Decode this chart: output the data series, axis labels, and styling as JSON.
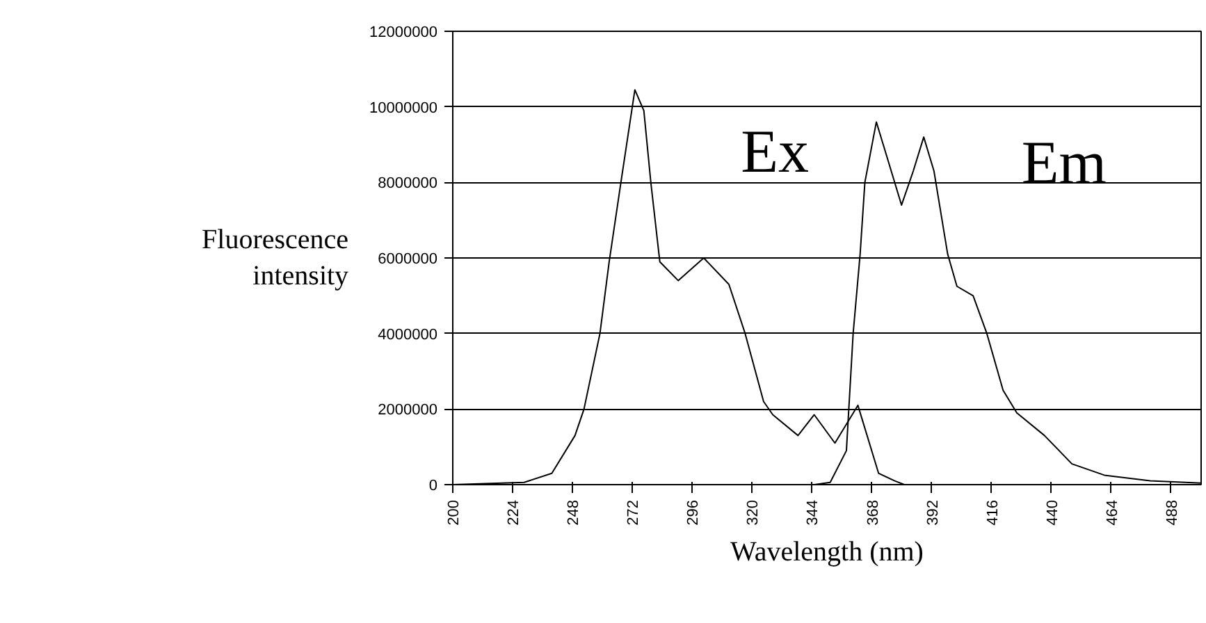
{
  "chart_data": {
    "type": "line",
    "xlabel": "Wavelength (nm)",
    "ylabel": "Fluorescence intensity",
    "xlim": [
      200,
      500
    ],
    "xticks": [
      200,
      224,
      248,
      272,
      296,
      320,
      344,
      368,
      392,
      416,
      440,
      464,
      488
    ],
    "ylim": [
      0,
      12000000
    ],
    "yticks": [
      0,
      2000000,
      4000000,
      6000000,
      8000000,
      10000000,
      12000000
    ],
    "grid": "y",
    "marker": "none",
    "line_style": "solid",
    "annotations": [
      "Ex",
      "Em"
    ],
    "series": [
      {
        "color": "#000000",
        "x": [
          200,
          228.6,
          239.7,
          249,
          252.6,
          259,
          262.7,
          267.4,
          273,
          276.6,
          279.4,
          283,
          290.4,
          300.6,
          310.7,
          317.2,
          324.6,
          328.3,
          338.4,
          344.9,
          353.2,
          362.4,
          370.7,
          377.2,
          381,
          500
        ],
        "values": [
          0,
          60000,
          300000,
          1300000,
          2000000,
          4000000,
          5900000,
          8000000,
          10450000,
          9900000,
          8000000,
          5900000,
          5400000,
          6000000,
          5300000,
          4000000,
          2200000,
          1850000,
          1300000,
          1850000,
          1100000,
          2100000,
          300000,
          100000,
          0,
          0
        ]
      },
      {
        "color": "#000000",
        "x": [
          200,
          345,
          351.3,
          357.8,
          360.5,
          363.3,
          365.2,
          369.8,
          374.4,
          379.9,
          384.6,
          388.8,
          392.9,
          398.4,
          402.1,
          408.6,
          414.1,
          420.6,
          426.1,
          437.2,
          448.2,
          461.2,
          479.6,
          500
        ],
        "values": [
          0,
          0,
          60000,
          900000,
          4000000,
          6100000,
          8000000,
          9600000,
          8600000,
          7400000,
          8300000,
          9200000,
          8300000,
          6100000,
          5250000,
          5000000,
          4000000,
          2500000,
          1900000,
          1300000,
          550000,
          250000,
          100000,
          40000
        ]
      }
    ]
  }
}
